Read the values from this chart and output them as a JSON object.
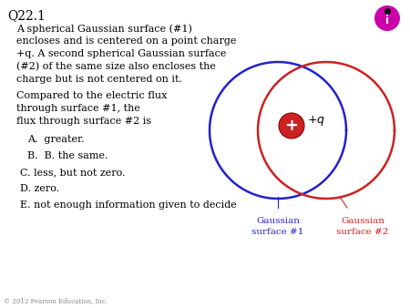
{
  "title": "Q22.1",
  "desc_lines": [
    "A spherical Gaussian surface (#1)",
    "encloses and is centered on a point charge",
    "+q. A second spherical Gaussian surface",
    "(#2) of the same size also encloses the",
    "charge but is not centered on it."
  ],
  "q_lines": [
    "Compared to the electric flux",
    "through surface #1, the",
    "flux through surface #2 is"
  ],
  "choices": [
    "A.  greater.",
    "B.  B. the same.",
    "C. less, but not zero.",
    "D. zero.",
    "E. not enough information given to decide"
  ],
  "copyright": "© 2012 Pearson Education, Inc.",
  "circle1_color": "#2222cc",
  "circle2_color": "#cc2222",
  "charge_color": "#cc2222",
  "label1_color": "#2222cc",
  "label2_color": "#cc2222",
  "icon_color": "#cc00aa"
}
